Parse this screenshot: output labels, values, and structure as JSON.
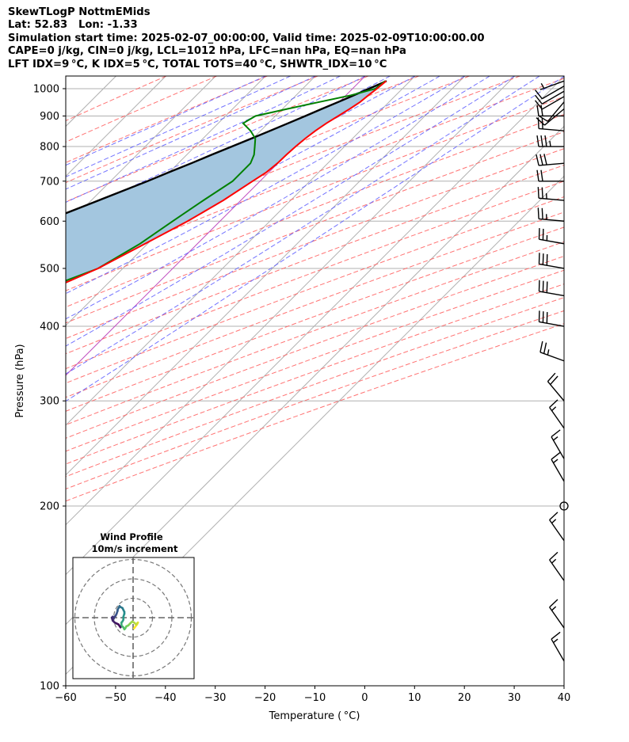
{
  "header": {
    "title": "SkewTLogP NottmEMids",
    "location": "Lat: 52.83   Lon: -1.33",
    "times": "Simulation start time: 2025-02-07_00:00:00, Valid time: 2025-02-09T10:00:00.00",
    "params": "CAPE=0 j/kg, CIN=0 j/kg, LCL=1012 hPa, LFC=nan hPa, EQ=nan hPa",
    "indices": "LFT IDX=9 °C, K IDX=5 °C, TOTAL TOTS=40 °C, SHWTR_IDX=10 °C"
  },
  "colors": {
    "temperature": "#ff0000",
    "dewpoint": "#008000",
    "parcel": "#000000",
    "cape_fill": "#a3c6df",
    "dry_adiabat": "#ff6464",
    "moist_adiabat": "#5a5aff",
    "isotherm": "#b0b0b0",
    "grid": "#b0b0b0",
    "zero_isotherm": "#c050c0"
  },
  "chart_data": {
    "type": "line",
    "title": "SkewTLogP NottmEMids",
    "xlabel": "Temperature ( °C)",
    "ylabel": "Pressure (hPa)",
    "xlim": [
      -60,
      40
    ],
    "ylim": [
      1050,
      100
    ],
    "x_ticks": [
      -60,
      -50,
      -40,
      -30,
      -20,
      -10,
      0,
      10,
      20,
      30,
      40
    ],
    "x_tick_labels": [
      "−60",
      "−50",
      "−40",
      "−30",
      "−20",
      "−10",
      "0",
      "10",
      "20",
      "30",
      "40"
    ],
    "y_ticks": [
      1000,
      900,
      800,
      700,
      600,
      500,
      400,
      300,
      200,
      100
    ],
    "y_tick_labels": [
      "1000",
      "900",
      "800",
      "700",
      "600",
      "500",
      "400",
      "300",
      "200",
      "100"
    ],
    "pressure": [
      1030,
      1000,
      975,
      950,
      925,
      900,
      875,
      850,
      825,
      800,
      775,
      750,
      725,
      700,
      650,
      600,
      550,
      500,
      450,
      400,
      375,
      350,
      325,
      300,
      275,
      250,
      225,
      200,
      175,
      150,
      125,
      100
    ],
    "series": [
      {
        "name": "Temperature",
        "units": "degC",
        "values": [
          5.2,
          4.9,
          4.5,
          4.2,
          3.5,
          2.6,
          1.7,
          1.0,
          0.5,
          0.2,
          0.0,
          -0.1,
          -0.5,
          -1.5,
          -3.5,
          -6.5,
          -10.5,
          -15.0,
          -22.0,
          -30.0,
          -35.5,
          -39.0,
          -39.0,
          -39.0,
          -40.0,
          -42.0,
          -45.0,
          -46.0,
          -44.0,
          -40.0,
          -40.5,
          -40.0
        ]
      },
      {
        "name": "Dewpoint",
        "units": "degC",
        "values": [
          5.0,
          4.6,
          1.0,
          -4.0,
          -9.0,
          -14.0,
          -15.0,
          -12.0,
          -9.5,
          -8.0,
          -6.5,
          -5.5,
          -5.5,
          -5.5,
          -7.5,
          -9.5,
          -11.5,
          -15.0,
          -24.0,
          -31.0,
          -37.0,
          -42.0,
          -48.0,
          -54.0,
          -57.5,
          -60.0,
          -62.0,
          -63.0,
          -63.0,
          -60.0,
          -55.0,
          -50.0
        ]
      },
      {
        "name": "Parcel",
        "units": "degC",
        "values": [
          5.3,
          3.3,
          1.6,
          -0.2,
          -2.1,
          -4.0,
          -6.0,
          -8.1,
          -10.3,
          -12.6,
          -15.0,
          -17.4,
          -20.0,
          -22.6,
          -28.5,
          -35.0,
          -42.0,
          -49.5,
          -57.5,
          -66.5,
          -71.5,
          -77.0,
          -82.5,
          -88.5,
          -95.0,
          -102.0,
          -110.0,
          -119.0,
          -129.0,
          -141.0,
          -155.0,
          -172.0
        ]
      }
    ],
    "wind_barbs": {
      "pressure": [
        1030,
        1010,
        990,
        970,
        950,
        925,
        900,
        850,
        800,
        750,
        700,
        650,
        600,
        550,
        500,
        450,
        400,
        350,
        300,
        270,
        240,
        220,
        200,
        175,
        150,
        125,
        110
      ],
      "speed_kt": [
        4,
        10,
        10,
        10,
        8,
        10,
        20,
        20,
        35,
        30,
        20,
        25,
        25,
        25,
        30,
        30,
        30,
        25,
        20,
        15,
        15,
        15,
        0,
        15,
        15,
        15,
        15
      ],
      "direction_deg": [
        250,
        240,
        240,
        240,
        220,
        230,
        270,
        275,
        270,
        265,
        270,
        275,
        275,
        280,
        280,
        280,
        280,
        290,
        320,
        325,
        330,
        330,
        0,
        325,
        325,
        325,
        330
      ]
    },
    "hodograph": {
      "title": "Wind Profile",
      "subtitle": "10m/s increment",
      "units": "m/s",
      "rings": [
        10,
        20,
        30
      ],
      "u": [
        0.5,
        2.0,
        2.5,
        2.0,
        1.5,
        0.5,
        -0.5,
        -1.5,
        -2.5,
        -3.5,
        -4.0,
        -4.5,
        -5.0,
        -5.5,
        -6.0,
        -6.0,
        -6.0,
        -5.5,
        -5.0,
        -5.0,
        -4.5,
        -4.5,
        -5.0,
        -5.5,
        -6.5,
        -7.0,
        -7.5,
        -8.0,
        -8.0,
        -8.5,
        -9.0,
        -9.5,
        -10.0,
        -10.5,
        -11.0,
        -10.5,
        -9.5,
        -8.5,
        -7.5,
        -6.5
      ],
      "v": [
        -5.5,
        -3.5,
        -2.5,
        -3.0,
        -3.5,
        -2.5,
        -2.0,
        -3.0,
        -4.0,
        -4.5,
        -5.5,
        -6.0,
        -5.0,
        -4.5,
        -4.5,
        -3.5,
        -2.5,
        -2.0,
        -1.0,
        0.5,
        2.0,
        3.0,
        4.0,
        5.0,
        5.5,
        6.0,
        5.0,
        4.0,
        3.5,
        2.0,
        1.0,
        0.5,
        -0.5,
        0.5,
        0.0,
        -1.5,
        -2.5,
        -3.0,
        -3.5,
        -5.0
      ]
    }
  }
}
